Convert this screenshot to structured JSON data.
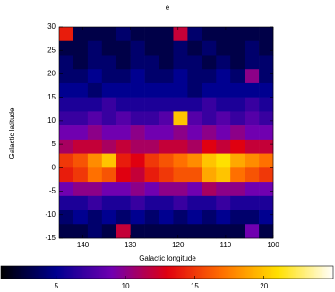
{
  "chart_data": {
    "type": "heatmap",
    "title": "e",
    "xlabel": "Galactic longitude",
    "ylabel": "Galactic latitude",
    "xlim": [
      145,
      100
    ],
    "ylim": [
      -15,
      30
    ],
    "xticks": [
      140,
      130,
      120,
      110,
      100
    ],
    "yticks": [
      -15,
      -10,
      -5,
      0,
      5,
      10,
      15,
      20,
      25,
      30
    ],
    "x": [
      143.5,
      140.5,
      137.5,
      134.5,
      131.5,
      128.5,
      125.5,
      122.5,
      119.5,
      116.5,
      113.5,
      110.5,
      107.5,
      104.5,
      101.5
    ],
    "y": [
      28.5,
      25.5,
      22.5,
      19.5,
      16.5,
      13.5,
      10.5,
      7.5,
      4.5,
      1.5,
      -1.5,
      -4.5,
      -7.5,
      -10.5,
      -13.5
    ],
    "z": [
      [
        14,
        3,
        3,
        3,
        4,
        3,
        3,
        3,
        12,
        4,
        3,
        3,
        3,
        3,
        3
      ],
      [
        3,
        3,
        4,
        3,
        3,
        4,
        3,
        3,
        4,
        3,
        4,
        3,
        3,
        4,
        3
      ],
      [
        4,
        3,
        4,
        4,
        3,
        4,
        4,
        3,
        4,
        4,
        3,
        4,
        3,
        4,
        4
      ],
      [
        4,
        4,
        5,
        4,
        4,
        5,
        4,
        4,
        5,
        4,
        4,
        5,
        4,
        10,
        4
      ],
      [
        5,
        5,
        4,
        5,
        5,
        5,
        5,
        5,
        5,
        4,
        5,
        5,
        5,
        5,
        5
      ],
      [
        6,
        6,
        6,
        7,
        6,
        6,
        6,
        6,
        6,
        6,
        7,
        6,
        6,
        7,
        6
      ],
      [
        7,
        7,
        8,
        7,
        8,
        7,
        7,
        8,
        20,
        8,
        7,
        8,
        7,
        8,
        7
      ],
      [
        9,
        9,
        10,
        9,
        9,
        10,
        9,
        9,
        10,
        9,
        10,
        9,
        10,
        9,
        9
      ],
      [
        11,
        12,
        12,
        11,
        12,
        11,
        11,
        12,
        12,
        11,
        13,
        12,
        13,
        12,
        12
      ],
      [
        15,
        16,
        18,
        20,
        14,
        13,
        15,
        16,
        17,
        18,
        20,
        21,
        19,
        18,
        17
      ],
      [
        14,
        15,
        17,
        16,
        13,
        12,
        14,
        15,
        16,
        16,
        19,
        20,
        17,
        16,
        15
      ],
      [
        9,
        10,
        10,
        9,
        9,
        10,
        9,
        10,
        10,
        9,
        11,
        10,
        10,
        9,
        9
      ],
      [
        6,
        6,
        7,
        6,
        6,
        7,
        6,
        6,
        7,
        6,
        6,
        7,
        6,
        6,
        6
      ],
      [
        4,
        5,
        4,
        5,
        4,
        5,
        4,
        5,
        4,
        5,
        4,
        5,
        4,
        4,
        5
      ],
      [
        3,
        3,
        4,
        3,
        12,
        3,
        3,
        3,
        3,
        3,
        3,
        3,
        3,
        9,
        3
      ]
    ],
    "zlim": [
      1,
      25
    ],
    "colorbar_ticks": [
      5,
      10,
      15,
      20
    ],
    "colormap": [
      "#000000",
      "#000090",
      "#7000b0",
      "#e00010",
      "#ff7000",
      "#ffe000",
      "#ffffff"
    ]
  }
}
